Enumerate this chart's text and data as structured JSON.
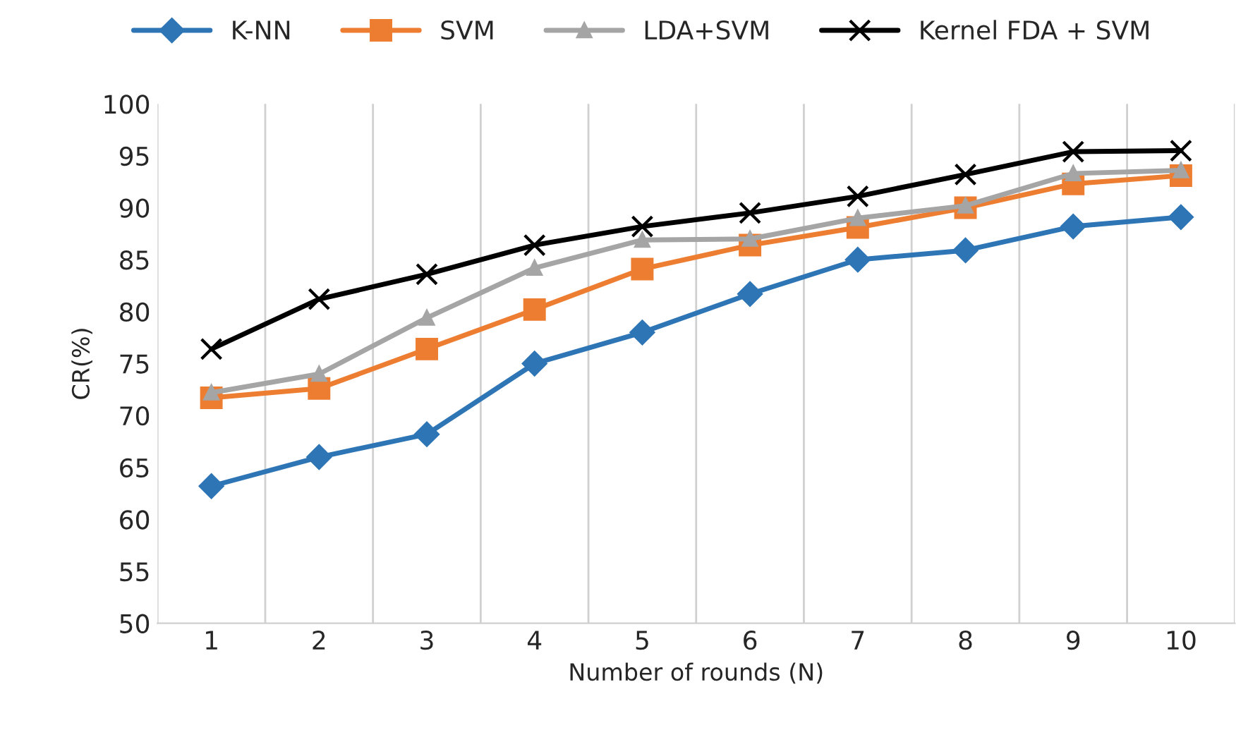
{
  "chart_data": {
    "type": "line",
    "xlabel": "Number of rounds (N)",
    "ylabel": "CR(%)",
    "categories": [
      "1",
      "2",
      "3",
      "4",
      "5",
      "6",
      "7",
      "8",
      "9",
      "10"
    ],
    "series": [
      {
        "name": "K-NN",
        "color": "#2e75b6",
        "marker": "diamond",
        "values": [
          63.2,
          66,
          68.2,
          75,
          78,
          81.7,
          85,
          85.9,
          88.2,
          89.1
        ]
      },
      {
        "name": "SVM",
        "color": "#ed7d31",
        "marker": "square",
        "values": [
          71.7,
          72.6,
          76.4,
          80.2,
          84.1,
          86.4,
          88.1,
          90,
          92.3,
          93.1
        ]
      },
      {
        "name": "LDA+SVM",
        "color": "#a5a5a5",
        "marker": "triangle",
        "values": [
          72.2,
          74,
          79.4,
          84.2,
          86.9,
          87,
          89,
          90.2,
          93.3,
          93.6
        ]
      },
      {
        "name": "Kernel FDA + SVM",
        "color": "#000000",
        "marker": "cross",
        "values": [
          76.4,
          81.2,
          83.6,
          86.4,
          88.2,
          89.5,
          91.1,
          93.2,
          95.4,
          95.5
        ]
      }
    ],
    "ylim": [
      50,
      100
    ],
    "yticks": [
      50,
      55,
      60,
      65,
      70,
      75,
      80,
      85,
      90,
      95,
      100
    ],
    "grid": "x",
    "legend": "top",
    "line_style": "solid"
  }
}
